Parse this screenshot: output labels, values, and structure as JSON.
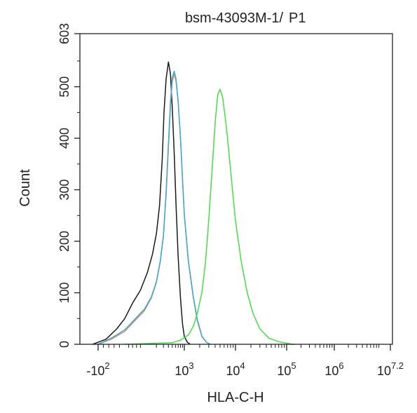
{
  "chart_data": {
    "type": "line",
    "title": {
      "sample": "bsm-43093M-1/",
      "gate": "P1",
      "sample_color": "#222222",
      "gate_color": "#44dd44"
    },
    "xlabel": "HLA-C-H",
    "ylabel": "Count",
    "x_scale": "biexponential",
    "xlim": [
      -100,
      15848932
    ],
    "ylim": [
      0,
      603
    ],
    "grid": false,
    "legend": "none",
    "x_ticks": [
      {
        "value": -100,
        "prefix": "-10",
        "exp": "2"
      },
      {
        "value": 1000,
        "prefix": "10",
        "exp": "3"
      },
      {
        "value": 10000,
        "prefix": "10",
        "exp": "4"
      },
      {
        "value": 100000,
        "prefix": "10",
        "exp": "5"
      },
      {
        "value": 1000000,
        "prefix": "10",
        "exp": "6"
      },
      {
        "value": 15848932,
        "prefix": "10",
        "exp": "7.2"
      }
    ],
    "y_ticks": [
      0,
      100,
      200,
      300,
      400,
      500,
      603
    ],
    "series": [
      {
        "color": "#1a1a1a",
        "x": [
          -120,
          -70,
          -30,
          0,
          40,
          80,
          120,
          160,
          200,
          240,
          280,
          310,
          350,
          400,
          450,
          500,
          560,
          620,
          700,
          800,
          900,
          1000,
          1150,
          1300
        ],
        "y": [
          0,
          10,
          30,
          50,
          80,
          105,
          140,
          175,
          215,
          270,
          360,
          450,
          515,
          548,
          525,
          460,
          370,
          270,
          170,
          90,
          40,
          15,
          4,
          0
        ]
      },
      {
        "color": "#d89060",
        "x": [
          -100,
          -50,
          0,
          50,
          100,
          150,
          200,
          250,
          300,
          350,
          400,
          450,
          500,
          560,
          620,
          700,
          800,
          900,
          1000,
          1200,
          1500,
          1800,
          2200,
          2700,
          3200
        ],
        "y": [
          0,
          10,
          25,
          45,
          65,
          90,
          120,
          160,
          210,
          290,
          380,
          460,
          510,
          525,
          510,
          470,
          400,
          320,
          250,
          160,
          90,
          45,
          15,
          4,
          0
        ]
      },
      {
        "color": "#3aaad8",
        "x": [
          -100,
          -50,
          0,
          50,
          100,
          150,
          200,
          250,
          300,
          350,
          400,
          450,
          500,
          560,
          620,
          700,
          800,
          900,
          1000,
          1200,
          1500,
          1800,
          2200,
          2700,
          3200
        ],
        "y": [
          0,
          12,
          28,
          48,
          68,
          92,
          122,
          162,
          212,
          295,
          390,
          470,
          518,
          530,
          515,
          472,
          402,
          322,
          252,
          162,
          92,
          48,
          16,
          4,
          0
        ]
      },
      {
        "color": "#44dd44",
        "x": [
          0,
          500,
          800,
          1200,
          1500,
          1800,
          2200,
          2600,
          3000,
          3500,
          4000,
          4500,
          5000,
          5600,
          6300,
          7000,
          8000,
          10000,
          13000,
          17000,
          22000,
          30000,
          45000,
          70000,
          100000,
          130000,
          150000
        ],
        "y": [
          0,
          3,
          8,
          18,
          35,
          60,
          100,
          160,
          240,
          340,
          430,
          485,
          495,
          480,
          440,
          400,
          340,
          240,
          160,
          100,
          60,
          30,
          12,
          5,
          2,
          0,
          0
        ]
      }
    ]
  }
}
